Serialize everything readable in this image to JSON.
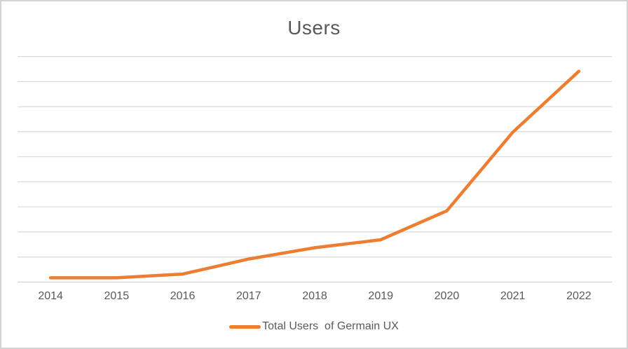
{
  "window": {
    "background": "#FFFFFF",
    "border_color": "#D3D3D3"
  },
  "chart_data": {
    "type": "line",
    "title": "Users",
    "title_color": "#595959",
    "categories": [
      "2014",
      "2015",
      "2016",
      "2017",
      "2018",
      "2019",
      "2020",
      "2021",
      "2022"
    ],
    "series": [
      {
        "name": "Total Users  of Germain UX",
        "color": "#ED7D31",
        "values": [
          0.17,
          0.17,
          0.32,
          0.92,
          1.37,
          1.69,
          2.84,
          5.98,
          8.41
        ]
      }
    ],
    "xlabel": "",
    "ylabel": "",
    "ylim": [
      0,
      9
    ],
    "gridline_step": 1,
    "y_tick_labels": [],
    "y_axis_note": "y axis has no visible tick labels; series values estimated in gridline units (0-9)",
    "grid": true,
    "gridline_color": "#D9D9D9",
    "axis_line_color": "#D2D2D2",
    "tick_label_color": "#595959",
    "legend_position": "bottom",
    "line_width": 4.5
  }
}
